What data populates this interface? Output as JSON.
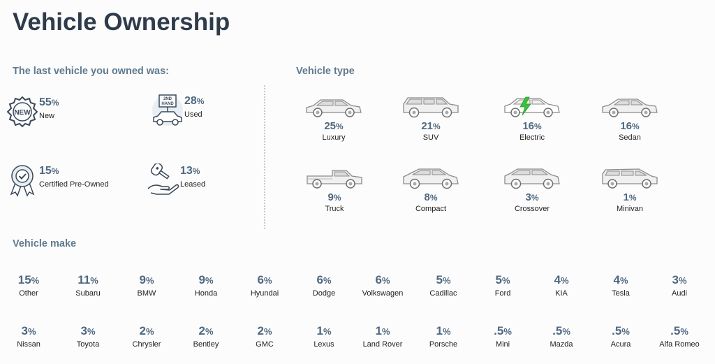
{
  "page": {
    "title": "Vehicle Ownership"
  },
  "ownership": {
    "heading": "The last vehicle you owned was:",
    "items": [
      {
        "icon": "new-badge-icon",
        "value": "55",
        "unit": "%",
        "label": "New"
      },
      {
        "icon": "second-hand-car-icon",
        "value": "28",
        "unit": "%",
        "label": "Used"
      },
      {
        "icon": "certified-ribbon-icon",
        "value": "15",
        "unit": "%",
        "label": "Certified Pre-Owned"
      },
      {
        "icon": "key-in-hand-icon",
        "value": "13",
        "unit": "%",
        "label": "Leased"
      }
    ]
  },
  "vehicle_type": {
    "heading": "Vehicle type",
    "items": [
      {
        "icon": "luxury-car-icon",
        "value": "25",
        "unit": "%",
        "label": "Luxury"
      },
      {
        "icon": "suv-icon",
        "value": "21",
        "unit": "%",
        "label": "SUV"
      },
      {
        "icon": "electric-car-icon",
        "value": "16",
        "unit": "%",
        "label": "Electric"
      },
      {
        "icon": "sedan-icon",
        "value": "16",
        "unit": "%",
        "label": "Sedan"
      },
      {
        "icon": "truck-icon",
        "value": "9",
        "unit": "%",
        "label": "Truck"
      },
      {
        "icon": "compact-car-icon",
        "value": "8",
        "unit": "%",
        "label": "Compact"
      },
      {
        "icon": "crossover-icon",
        "value": "3",
        "unit": "%",
        "label": "Crossover"
      },
      {
        "icon": "minivan-icon",
        "value": "1",
        "unit": "%",
        "label": "Minivan"
      }
    ]
  },
  "vehicle_make": {
    "heading": "Vehicle make",
    "items": [
      {
        "value": "15",
        "unit": "%",
        "label": "Other"
      },
      {
        "value": "11",
        "unit": "%",
        "label": "Subaru"
      },
      {
        "value": "9",
        "unit": "%",
        "label": "BMW"
      },
      {
        "value": "9",
        "unit": "%",
        "label": "Honda"
      },
      {
        "value": "6",
        "unit": "%",
        "label": "Hyundai"
      },
      {
        "value": "6",
        "unit": "%",
        "label": "Dodge"
      },
      {
        "value": "6",
        "unit": "%",
        "label": "Volkswagen"
      },
      {
        "value": "5",
        "unit": "%",
        "label": "Cadillac"
      },
      {
        "value": "5",
        "unit": "%",
        "label": "Ford"
      },
      {
        "value": "4",
        "unit": "%",
        "label": "KIA"
      },
      {
        "value": "4",
        "unit": "%",
        "label": "Tesla"
      },
      {
        "value": "3",
        "unit": "%",
        "label": "Audi"
      },
      {
        "value": "3",
        "unit": "%",
        "label": "Nissan"
      },
      {
        "value": "3",
        "unit": "%",
        "label": "Toyota"
      },
      {
        "value": "2",
        "unit": "%",
        "label": "Chrysler"
      },
      {
        "value": "2",
        "unit": "%",
        "label": "Bentley"
      },
      {
        "value": "2",
        "unit": "%",
        "label": "GMC"
      },
      {
        "value": "1",
        "unit": "%",
        "label": "Lexus"
      },
      {
        "value": "1",
        "unit": "%",
        "label": "Land Rover"
      },
      {
        "value": "1",
        "unit": "%",
        "label": "Porsche"
      },
      {
        "value": ".5",
        "unit": "%",
        "label": "Mini"
      },
      {
        "value": ".5",
        "unit": "%",
        "label": "Mazda"
      },
      {
        "value": ".5",
        "unit": "%",
        "label": "Acura"
      },
      {
        "value": ".5",
        "unit": "%",
        "label": "Alfa Romeo"
      }
    ]
  },
  "colors": {
    "heading": "#2f3b4a",
    "section": "#5f7a8f",
    "value": "#4f6880",
    "electric_bolt": "#3cc13c"
  }
}
